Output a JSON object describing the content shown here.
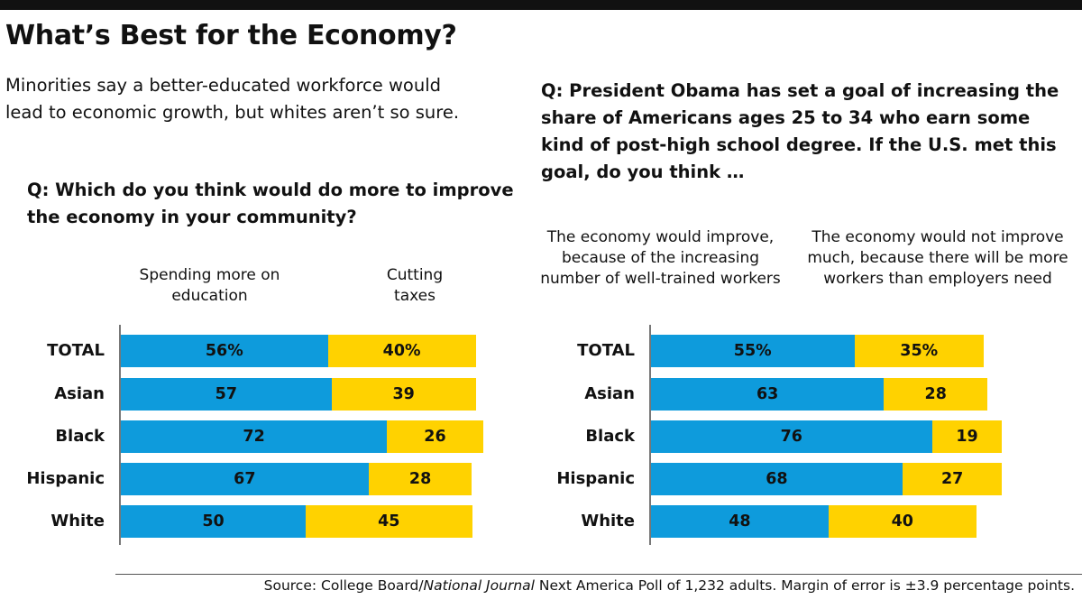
{
  "title": "What’s Best for the Economy?",
  "subtitle": "Minorities say a better-educated workforce would lead to economic growth, but whites aren’t so sure.",
  "source": {
    "pre": "Source: College Board/",
    "italic": "National Journal",
    "post": " Next America Poll of 1,232 adults. Margin of error is ±3.9 percentage points."
  },
  "colors": {
    "blue": "#0e9bdc",
    "yellow": "#ffd200"
  },
  "chart_data": [
    {
      "type": "bar",
      "orientation": "horizontal",
      "stacked": true,
      "title": "Q: Which do you think would do more to improve the economy in your community?",
      "categories": [
        "TOTAL",
        "Asian",
        "Black",
        "Hispanic",
        "White"
      ],
      "series": [
        {
          "name": "Spending more on education",
          "values": [
            56,
            57,
            72,
            67,
            50
          ],
          "labels": [
            "56%",
            "57",
            "72",
            "67",
            "50"
          ],
          "color": "#0e9bdc"
        },
        {
          "name": "Cutting taxes",
          "values": [
            40,
            39,
            26,
            28,
            45
          ],
          "labels": [
            "40%",
            "39",
            "26",
            "28",
            "45"
          ],
          "color": "#ffd200"
        }
      ]
    },
    {
      "type": "bar",
      "orientation": "horizontal",
      "stacked": true,
      "title": "Q: President Obama has set a goal of increasing the share of Americans ages 25 to 34 who earn some kind of post-high school degree. If the U.S. met this goal, do you think …",
      "categories": [
        "TOTAL",
        "Asian",
        "Black",
        "Hispanic",
        "White"
      ],
      "series": [
        {
          "name": "The economy would improve, because of the increasing number of well-trained workers",
          "values": [
            55,
            63,
            76,
            68,
            48
          ],
          "labels": [
            "55%",
            "63",
            "76",
            "68",
            "48"
          ],
          "color": "#0e9bdc"
        },
        {
          "name": "The economy would not improve much, because there will be more workers than employers need",
          "values": [
            35,
            28,
            19,
            27,
            40
          ],
          "labels": [
            "35%",
            "28",
            "19",
            "27",
            "40"
          ],
          "color": "#ffd200"
        }
      ]
    }
  ]
}
